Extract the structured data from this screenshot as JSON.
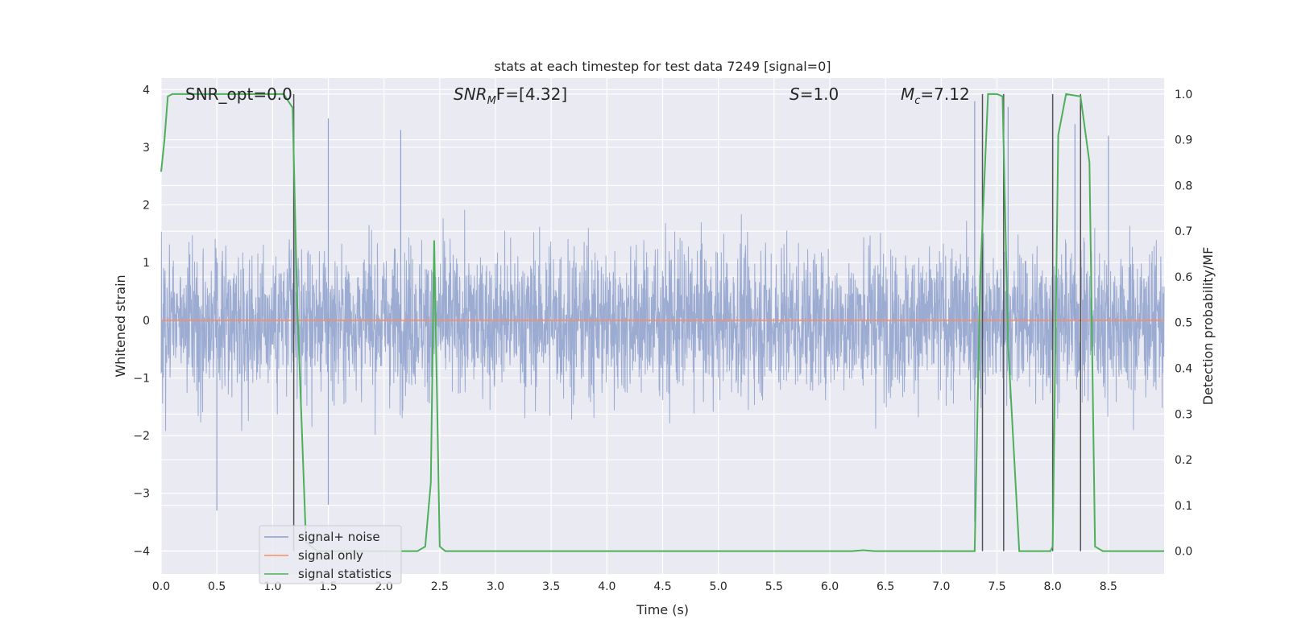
{
  "chart_data": {
    "type": "line",
    "title": "stats at each timestep for test data 7249 [signal=0]",
    "xlabel": "Time (s)",
    "ylabel_left": "Whitened strain",
    "ylabel_right": "Detection probability/MF",
    "xlim": [
      0.0,
      9.0
    ],
    "ylim_left": [
      -4.4,
      4.2
    ],
    "ylim_right": [
      -0.05,
      1.035
    ],
    "xticks": [
      "0.0",
      "0.5",
      "1.0",
      "1.5",
      "2.0",
      "2.5",
      "3.0",
      "3.5",
      "4.0",
      "4.5",
      "5.0",
      "5.5",
      "6.0",
      "6.5",
      "7.0",
      "7.5",
      "8.0",
      "8.5"
    ],
    "yticks_left": [
      "4",
      "3",
      "2",
      "1",
      "0",
      "−1",
      "−2",
      "−3",
      "−4"
    ],
    "yticks_right": [
      "1.0",
      "0.9",
      "0.8",
      "0.7",
      "0.6",
      "0.5",
      "0.4",
      "0.3",
      "0.2",
      "0.1",
      "0.0"
    ],
    "grid": true,
    "legend_position": "lower-left",
    "annotations": {
      "snr_opt": "SNR_opt=0.0",
      "snr_mf_sym": "SNR",
      "snr_mf_sub": "M",
      "snr_mf_rest": "F=[4.32]",
      "s_sym": "S",
      "s_rest": "=1.0",
      "mc_sym": "M",
      "mc_sub": "c",
      "mc_rest": "=7.12"
    },
    "series": [
      {
        "name": "signal+ noise",
        "axis": "left",
        "color": "#8da0cb",
        "description_level": "noise band approx ±1.5 with spikes up to ±3.5",
        "spikes": [
          {
            "x": 0.5,
            "y": -3.3
          },
          {
            "x": 1.5,
            "y": 3.5
          },
          {
            "x": 1.5,
            "y": -3.2
          },
          {
            "x": 2.15,
            "y": 3.3
          },
          {
            "x": 7.3,
            "y": 3.8
          },
          {
            "x": 7.3,
            "y": -3.5
          },
          {
            "x": 7.6,
            "y": 3.7
          },
          {
            "x": 8.2,
            "y": 3.4
          },
          {
            "x": 8.5,
            "y": 3.2
          }
        ]
      },
      {
        "name": "signal only",
        "axis": "left",
        "color": "#fc8d62",
        "x": [
          0.0,
          9.0
        ],
        "y": [
          0.0,
          0.0
        ]
      },
      {
        "name": "signal statistics",
        "axis": "right",
        "color": "#4daf5a",
        "x": [
          0.0,
          0.03,
          0.06,
          0.1,
          0.5,
          1.0,
          1.1,
          1.18,
          1.22,
          1.3,
          1.4,
          2.3,
          2.37,
          2.42,
          2.45,
          2.5,
          2.55,
          6.2,
          6.3,
          6.4,
          7.3,
          7.35,
          7.42,
          7.5,
          7.55,
          7.6,
          7.7,
          7.8,
          7.98,
          8.0,
          8.05,
          8.12,
          8.25,
          8.33,
          8.38,
          8.45,
          9.0
        ],
        "y": [
          0.83,
          0.9,
          0.995,
          1.0,
          1.0,
          1.0,
          1.0,
          0.97,
          0.55,
          0.02,
          0.0,
          0.0,
          0.01,
          0.15,
          0.68,
          0.01,
          0.0,
          0.0,
          0.002,
          0.0,
          0.0,
          0.6,
          1.0,
          1.0,
          0.995,
          0.45,
          0.0,
          0.0,
          0.0,
          0.01,
          0.91,
          1.0,
          0.995,
          0.85,
          0.01,
          0.0,
          0.0
        ]
      }
    ],
    "vertical_lines_x": [
      1.19,
      7.37,
      7.56,
      8.0,
      8.25
    ]
  }
}
